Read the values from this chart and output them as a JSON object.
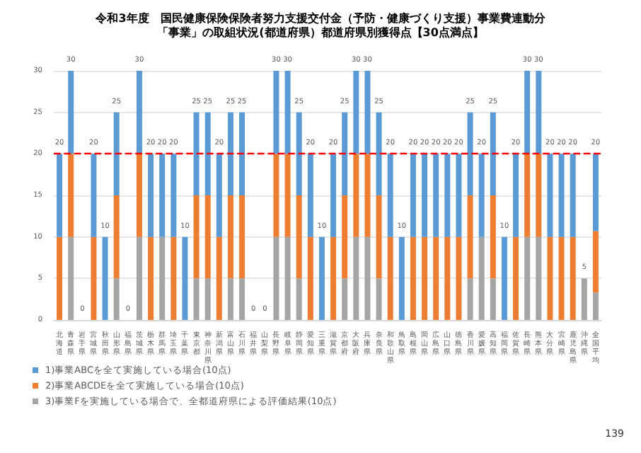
{
  "chart_data": {
    "type": "bar",
    "stacked": true,
    "title": "令和3年度　国民健康保険保険者努力支援交付金（予防・健康づくり支援）事業費連動分",
    "subtitle": "「事業」の取組状況(都道府県）都道府県別獲得点【30点満点】",
    "categories": [
      "北海道",
      "青森県",
      "岩手県",
      "宮城県",
      "秋田県",
      "山形県",
      "福島県",
      "茨城県",
      "栃木県",
      "群馬県",
      "埼玉県",
      "千葉県",
      "東京都",
      "神奈川県",
      "新潟県",
      "富山県",
      "石川県",
      "福井県",
      "山梨県",
      "長野県",
      "岐阜県",
      "静岡県",
      "愛知県",
      "三重県",
      "滋賀県",
      "京都府",
      "大阪府",
      "兵庫県",
      "奈良県",
      "和歌山県",
      "鳥取県",
      "島根県",
      "岡山県",
      "広島県",
      "山口県",
      "徳島県",
      "香川県",
      "愛媛県",
      "高知県",
      "福岡県",
      "佐賀県",
      "長崎県",
      "熊本県",
      "大分県",
      "宮崎県",
      "鹿児島県",
      "沖縄県",
      "全国平均"
    ],
    "series": [
      {
        "name": "3)事業Fを実施している場合で、全都道府県による評価結果(10点)",
        "color": "#a5a5a5",
        "values": [
          0,
          10,
          0,
          0,
          0,
          5,
          0,
          10,
          0,
          10,
          0,
          0,
          5,
          5,
          0,
          5,
          5,
          0,
          0,
          10,
          10,
          5,
          0,
          0,
          0,
          5,
          10,
          10,
          5,
          0,
          0,
          0,
          0,
          0,
          0,
          0,
          5,
          10,
          5,
          0,
          0,
          10,
          10,
          0,
          0,
          0,
          5,
          3.3
        ]
      },
      {
        "name": "2)事業ABCDEを全て実施している場合(10点)",
        "color": "#ed7d31",
        "values": [
          10,
          10,
          0,
          10,
          0,
          10,
          0,
          10,
          10,
          0,
          10,
          0,
          10,
          10,
          10,
          10,
          10,
          0,
          0,
          10,
          10,
          10,
          10,
          0,
          10,
          10,
          10,
          10,
          10,
          10,
          0,
          10,
          10,
          10,
          10,
          10,
          10,
          0,
          10,
          0,
          10,
          10,
          10,
          10,
          10,
          10,
          0,
          7.4
        ]
      },
      {
        "name": "1)事業ABCを全て実施している場合(10点)",
        "color": "#5b9bd5",
        "values": [
          10,
          10,
          0,
          10,
          10,
          10,
          0,
          10,
          10,
          10,
          10,
          10,
          10,
          10,
          10,
          10,
          10,
          0,
          0,
          10,
          10,
          10,
          10,
          10,
          10,
          10,
          10,
          10,
          10,
          10,
          10,
          10,
          10,
          10,
          10,
          10,
          10,
          10,
          10,
          10,
          10,
          10,
          10,
          10,
          10,
          10,
          0,
          9.3
        ]
      }
    ],
    "totals": [
      "20",
      "30",
      "0",
      "20",
      "10",
      "25",
      "0",
      "30",
      "20",
      "20",
      "20",
      "10",
      "25",
      "25",
      "20",
      "25",
      "25",
      "0",
      "0",
      "30",
      "30",
      "25",
      "20",
      "10",
      "20",
      "25",
      "30",
      "30",
      "25",
      "20",
      "10",
      "20",
      "20",
      "20",
      "20",
      "20",
      "25",
      "20",
      "25",
      "10",
      "20",
      "30",
      "30",
      "20",
      "20",
      "20",
      "5",
      "20"
    ],
    "ylim": [
      0,
      30
    ],
    "yticks": [
      0,
      5,
      10,
      15,
      20,
      25,
      30
    ],
    "grid": "y",
    "legend": "bottom left",
    "ref_lines": [
      {
        "axis": "y",
        "value": 20,
        "color": "#ff0000",
        "line_style": "dashed"
      }
    ],
    "annotations": [
      "139"
    ]
  }
}
